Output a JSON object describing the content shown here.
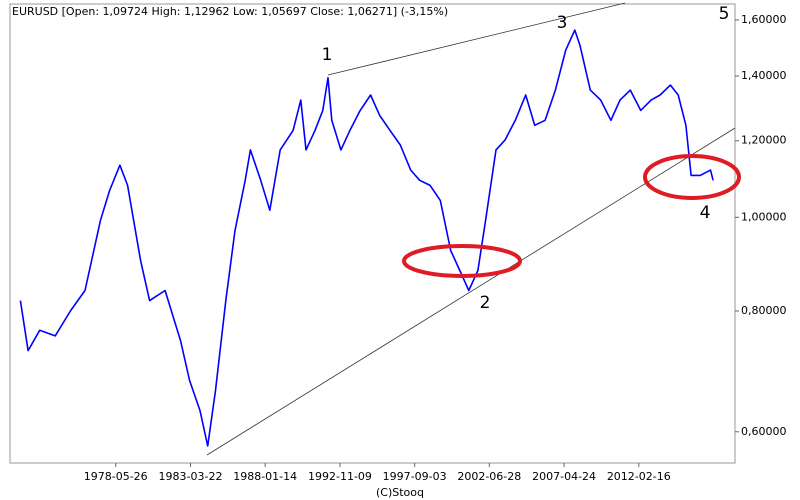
{
  "chart_data": {
    "type": "line",
    "title": "EURUSD [Open: 1,09724 High: 1,12962 Low: 1,05697 Close: 1,06271] (-3,15%)",
    "footer": "(C)Stooq",
    "color": "#0000ff",
    "log_y": true,
    "grid": false,
    "x": [
      "1972-04",
      "1972-10",
      "1973-07",
      "1974-07",
      "1975-07",
      "1976-06",
      "1977-06",
      "1978-01",
      "1978-09",
      "1979-03",
      "1980-01",
      "1980-08",
      "1981-08",
      "1982-08",
      "1983-03",
      "1983-11",
      "1984-05",
      "1984-11",
      "1985-07",
      "1986-02",
      "1986-10",
      "1987-02",
      "1987-10",
      "1988-05",
      "1989-01",
      "1989-11",
      "1990-05",
      "1990-09",
      "1991-04",
      "1991-10",
      "1992-02",
      "1992-05",
      "1992-12",
      "1993-07",
      "1994-03",
      "1994-11",
      "1995-06",
      "1996-02",
      "1996-10",
      "1997-06",
      "1998-01",
      "1998-09",
      "1999-05",
      "2000-01",
      "2000-08",
      "2001-03",
      "2001-10",
      "2002-04",
      "2002-12",
      "2003-07",
      "2004-03",
      "2004-11",
      "2005-06",
      "2006-02",
      "2006-10",
      "2007-06",
      "2008-01",
      "2008-05",
      "2009-01",
      "2009-09",
      "2010-05",
      "2010-12",
      "2011-08",
      "2012-04",
      "2012-12",
      "2013-07",
      "2014-03",
      "2014-09",
      "2015-03",
      "2015-07",
      "2016-02",
      "2016-10",
      "2016-12"
    ],
    "values": [
      0.82,
      0.728,
      0.764,
      0.754,
      0.801,
      0.84,
      0.993,
      1.066,
      1.132,
      1.079,
      0.902,
      0.82,
      0.84,
      0.745,
      0.678,
      0.631,
      0.58,
      0.662,
      0.82,
      0.969,
      1.092,
      1.174,
      1.092,
      1.017,
      1.174,
      1.23,
      1.322,
      1.174,
      1.23,
      1.29,
      1.394,
      1.26,
      1.174,
      1.23,
      1.29,
      1.338,
      1.275,
      1.23,
      1.188,
      1.119,
      1.092,
      1.079,
      1.041,
      0.924,
      0.881,
      0.84,
      0.881,
      0.993,
      1.174,
      1.202,
      1.26,
      1.338,
      1.245,
      1.26,
      1.354,
      1.489,
      1.562,
      1.507,
      1.354,
      1.322,
      1.26,
      1.322,
      1.354,
      1.29,
      1.322,
      1.338,
      1.37,
      1.338,
      1.245,
      1.105,
      1.105,
      1.119,
      1.092
    ],
    "xlim": [
      "1971-08",
      "2018-05"
    ],
    "xticks": [
      "1978-05-26",
      "1983-03-22",
      "1988-01-14",
      "1992-11-09",
      "1997-09-03",
      "2002-06-28",
      "2007-04-24",
      "2012-02-16"
    ],
    "ylim": [
      0.557,
      1.662
    ],
    "yticks": [
      {
        "value": 0.6,
        "label": "0,60000"
      },
      {
        "value": 0.8,
        "label": "0,80000"
      },
      {
        "value": 1.0,
        "label": "1,00000"
      },
      {
        "value": 1.2,
        "label": "1,20000"
      },
      {
        "value": 1.4,
        "label": "1,40000"
      },
      {
        "value": 1.6,
        "label": "1,60000"
      }
    ],
    "annotations": [
      {
        "text": "1"
      },
      {
        "text": "2"
      },
      {
        "text": "3"
      },
      {
        "text": "4"
      },
      {
        "text": "5"
      }
    ]
  }
}
